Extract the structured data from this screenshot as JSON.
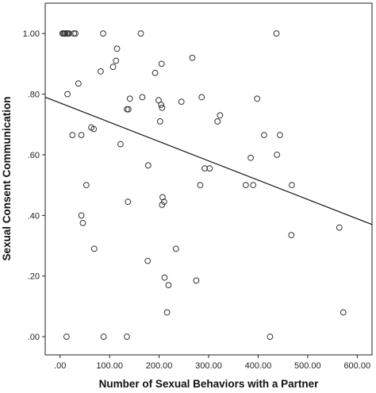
{
  "chart_data": {
    "type": "scatter",
    "xlabel": "Number of Sexual Behaviors with a Partner",
    "ylabel": "Sexual Consent Communication",
    "xlim": [
      -30,
      630
    ],
    "ylim": [
      -0.06,
      1.1
    ],
    "x_ticks": [
      ".00",
      "100.00",
      "200.00",
      "300.00",
      "400.00",
      "500.00",
      "600.00"
    ],
    "y_ticks": [
      ".00",
      ".20",
      ".40",
      ".60",
      ".80",
      "1.00"
    ],
    "grid": false,
    "legend": "none",
    "marker": "open-circle",
    "fit_line": {
      "x": [
        -30,
        630
      ],
      "y": [
        0.79,
        0.37
      ]
    },
    "points": [
      {
        "x": 5,
        "y": 1.0
      },
      {
        "x": 7,
        "y": 1.0
      },
      {
        "x": 9,
        "y": 1.0
      },
      {
        "x": 11,
        "y": 1.0
      },
      {
        "x": 14,
        "y": 1.0
      },
      {
        "x": 16,
        "y": 1.0
      },
      {
        "x": 18,
        "y": 1.0
      },
      {
        "x": 28,
        "y": 1.0
      },
      {
        "x": 31,
        "y": 1.0
      },
      {
        "x": 87,
        "y": 1.0
      },
      {
        "x": 163,
        "y": 1.0
      },
      {
        "x": 437,
        "y": 1.0
      },
      {
        "x": 115,
        "y": 0.95
      },
      {
        "x": 267,
        "y": 0.92
      },
      {
        "x": 113,
        "y": 0.91
      },
      {
        "x": 205,
        "y": 0.9
      },
      {
        "x": 107,
        "y": 0.89
      },
      {
        "x": 82,
        "y": 0.875
      },
      {
        "x": 192,
        "y": 0.87
      },
      {
        "x": 37,
        "y": 0.835
      },
      {
        "x": 15,
        "y": 0.8
      },
      {
        "x": 166,
        "y": 0.79
      },
      {
        "x": 286,
        "y": 0.79
      },
      {
        "x": 141,
        "y": 0.785
      },
      {
        "x": 398,
        "y": 0.785
      },
      {
        "x": 199,
        "y": 0.78
      },
      {
        "x": 245,
        "y": 0.775
      },
      {
        "x": 204,
        "y": 0.765
      },
      {
        "x": 206,
        "y": 0.755
      },
      {
        "x": 135,
        "y": 0.75
      },
      {
        "x": 138,
        "y": 0.75
      },
      {
        "x": 323,
        "y": 0.73
      },
      {
        "x": 202,
        "y": 0.71
      },
      {
        "x": 318,
        "y": 0.71
      },
      {
        "x": 63,
        "y": 0.69
      },
      {
        "x": 68,
        "y": 0.685
      },
      {
        "x": 25,
        "y": 0.665
      },
      {
        "x": 43,
        "y": 0.665
      },
      {
        "x": 412,
        "y": 0.665
      },
      {
        "x": 444,
        "y": 0.665
      },
      {
        "x": 122,
        "y": 0.635
      },
      {
        "x": 438,
        "y": 0.6
      },
      {
        "x": 385,
        "y": 0.59
      },
      {
        "x": 178,
        "y": 0.565
      },
      {
        "x": 292,
        "y": 0.555
      },
      {
        "x": 302,
        "y": 0.555
      },
      {
        "x": 53,
        "y": 0.5
      },
      {
        "x": 283,
        "y": 0.5
      },
      {
        "x": 375,
        "y": 0.5
      },
      {
        "x": 390,
        "y": 0.5
      },
      {
        "x": 468,
        "y": 0.5
      },
      {
        "x": 207,
        "y": 0.46
      },
      {
        "x": 137,
        "y": 0.445
      },
      {
        "x": 210,
        "y": 0.445
      },
      {
        "x": 206,
        "y": 0.435
      },
      {
        "x": 43,
        "y": 0.4
      },
      {
        "x": 46,
        "y": 0.375
      },
      {
        "x": 467,
        "y": 0.335
      },
      {
        "x": 564,
        "y": 0.36
      },
      {
        "x": 69,
        "y": 0.29
      },
      {
        "x": 234,
        "y": 0.29
      },
      {
        "x": 177,
        "y": 0.25
      },
      {
        "x": 211,
        "y": 0.195
      },
      {
        "x": 275,
        "y": 0.185
      },
      {
        "x": 219,
        "y": 0.17
      },
      {
        "x": 216,
        "y": 0.08
      },
      {
        "x": 572,
        "y": 0.08
      },
      {
        "x": 13,
        "y": 0.0
      },
      {
        "x": 88,
        "y": 0.0
      },
      {
        "x": 135,
        "y": 0.0
      },
      {
        "x": 424,
        "y": 0.0
      }
    ]
  }
}
